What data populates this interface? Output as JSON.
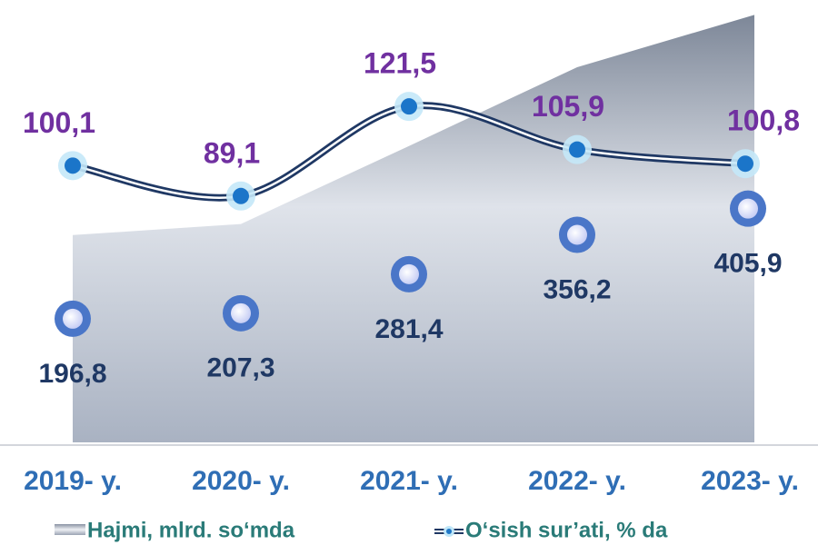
{
  "chart_data": {
    "type": "area-line",
    "categories": [
      "2019- y.",
      "2020- y.",
      "2021- y.",
      "2022- y.",
      "2023- y."
    ],
    "series": [
      {
        "name": "Hajmi, mlrd. so‘mda",
        "color": "#b4bccb",
        "type": "area",
        "values": [
          196.8,
          207.3,
          281.4,
          356.2,
          405.9
        ],
        "value_labels": [
          "196,8",
          "207,3",
          "281,4",
          "356,2",
          "405,9"
        ]
      },
      {
        "name": "O‘sish sur’ati, % da",
        "color": "#1f3864",
        "type": "line",
        "axis": "y2",
        "values": [
          100.1,
          89.1,
          121.5,
          105.9,
          100.8
        ],
        "value_labels": [
          "100,1",
          "89,1",
          "121,5",
          "105,9",
          "100,8"
        ]
      }
    ],
    "ylim": [
      0,
      420
    ],
    "y2lim": [
      0,
      160
    ],
    "legend": "bottom"
  }
}
